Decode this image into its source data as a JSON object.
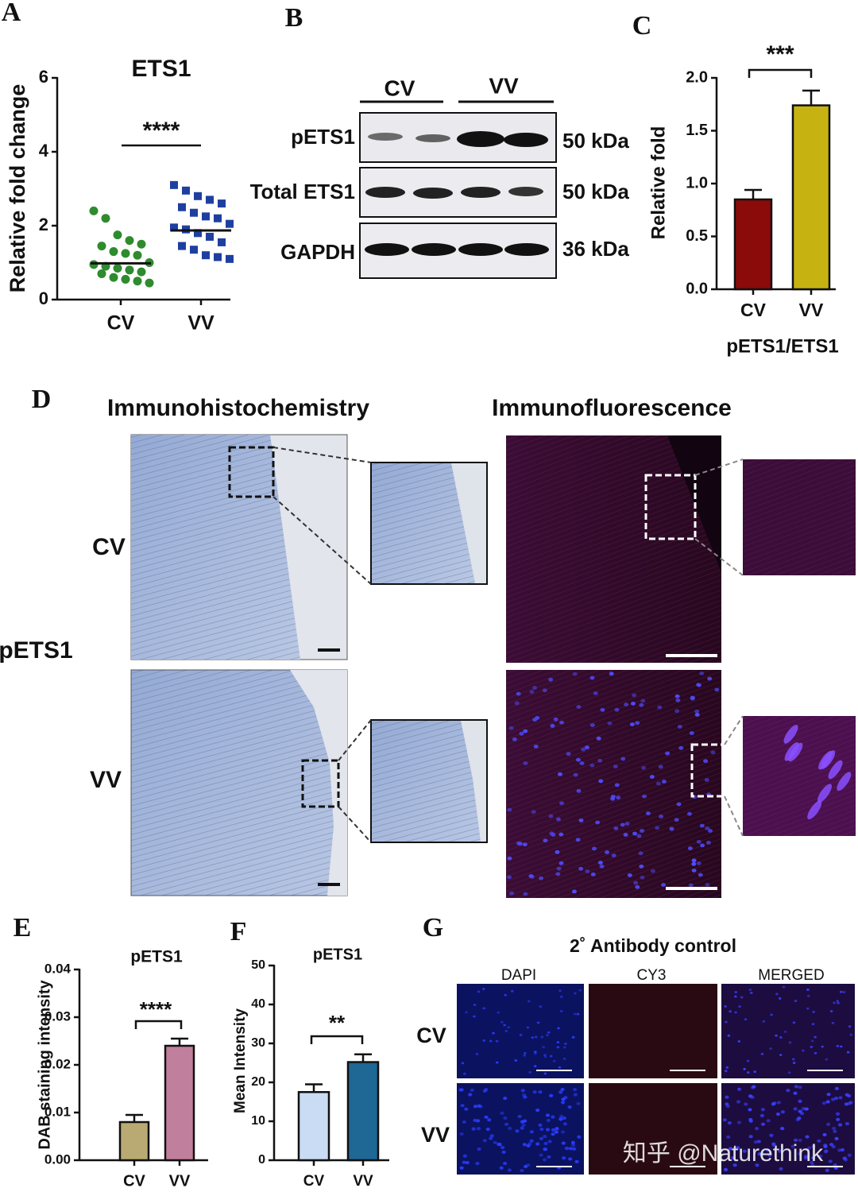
{
  "chart_data": [
    {
      "type": "scatter",
      "panel_label": "A",
      "title": "ETS1",
      "y_label": "Relative fold change",
      "categories": [
        "CV",
        "VV"
      ],
      "series": [
        {
          "name": "CV",
          "color": "#2e8b2e",
          "marker": "circle",
          "values": [
            2.4,
            2.2,
            1.75,
            1.6,
            1.5,
            1.45,
            1.3,
            1.25,
            1.2,
            1.0,
            0.95,
            0.9,
            0.85,
            0.8,
            0.75,
            0.7,
            0.6,
            0.55,
            0.5,
            0.45
          ]
        },
        {
          "name": "VV",
          "color": "#1f3fa0",
          "marker": "square",
          "values": [
            3.1,
            2.95,
            2.8,
            2.7,
            2.6,
            2.5,
            2.35,
            2.25,
            2.2,
            2.05,
            1.95,
            1.9,
            1.8,
            1.7,
            1.55,
            1.45,
            1.35,
            1.2,
            1.15,
            1.1
          ]
        }
      ],
      "means": [
        0.98,
        1.87
      ],
      "ylim": [
        0,
        6
      ],
      "yticks": [
        0,
        2,
        4,
        6
      ],
      "annotation": "****"
    },
    {
      "type": "bar",
      "panel_label": "C",
      "y_label": "Relative fold",
      "x_label": "pETS1/ETS1",
      "categories": [
        "CV",
        "VV"
      ],
      "values": [
        0.85,
        1.74
      ],
      "errors": [
        0.09,
        0.14
      ],
      "colors": [
        "#8b0a0a",
        "#c6b312"
      ],
      "ylim": [
        0,
        2
      ],
      "yticks": [
        {
          "value": 0,
          "label": "0.0"
        },
        {
          "value": 0.5,
          "label": "0.5"
        },
        {
          "value": 1,
          "label": "1.0"
        },
        {
          "value": 1.5,
          "label": "1.5"
        },
        {
          "value": 2,
          "label": "2.0"
        }
      ],
      "annotation": "***"
    },
    {
      "type": "bar",
      "panel_label": "E",
      "title": "pETS1",
      "y_label": "DAB staining intensity",
      "categories": [
        "CV",
        "VV"
      ],
      "values": [
        0.008,
        0.024
      ],
      "errors": [
        0.0015,
        0.0015
      ],
      "colors": [
        "#b8aa72",
        "#c17f9e"
      ],
      "ylim": [
        0,
        0.04
      ],
      "yticks": [
        {
          "value": 0,
          "label": "0.00"
        },
        {
          "value": 0.01,
          "label": "0.01"
        },
        {
          "value": 0.02,
          "label": "0.02"
        },
        {
          "value": 0.03,
          "label": "0.03"
        },
        {
          "value": 0.04,
          "label": "0.04"
        }
      ],
      "annotation": "****"
    },
    {
      "type": "bar",
      "panel_label": "F",
      "title": "pETS1",
      "y_label": "Mean Intensity",
      "categories": [
        "CV",
        "VV"
      ],
      "values": [
        17.5,
        25.2
      ],
      "errors": [
        2,
        2
      ],
      "colors": [
        "#c9dcf3",
        "#1f6795"
      ],
      "ylim": [
        0,
        50
      ],
      "yticks": [
        0,
        10,
        20,
        30,
        40,
        50
      ],
      "annotation": "**"
    }
  ],
  "blot": {
    "panel_label": "B",
    "groups": [
      "CV",
      "VV"
    ],
    "rows": [
      {
        "label": "pETS1",
        "size": "50 kDa"
      },
      {
        "label": "Total ETS1",
        "size": "50 kDa"
      },
      {
        "label": "GAPDH",
        "size": "36 kDa"
      }
    ]
  },
  "staining": {
    "panel_label": "D",
    "side_label": "pETS1",
    "columns": [
      "Immunohistochemistry",
      "Immunofluorescence"
    ],
    "rows": [
      "CV",
      "VV"
    ]
  },
  "antibody_control": {
    "panel_label": "G",
    "title": "2˚ Antibody control",
    "columns": [
      "DAPI",
      "CY3",
      "MERGED"
    ],
    "rows": [
      "CV",
      "VV"
    ]
  },
  "watermark": "知乎 @Naturethink"
}
